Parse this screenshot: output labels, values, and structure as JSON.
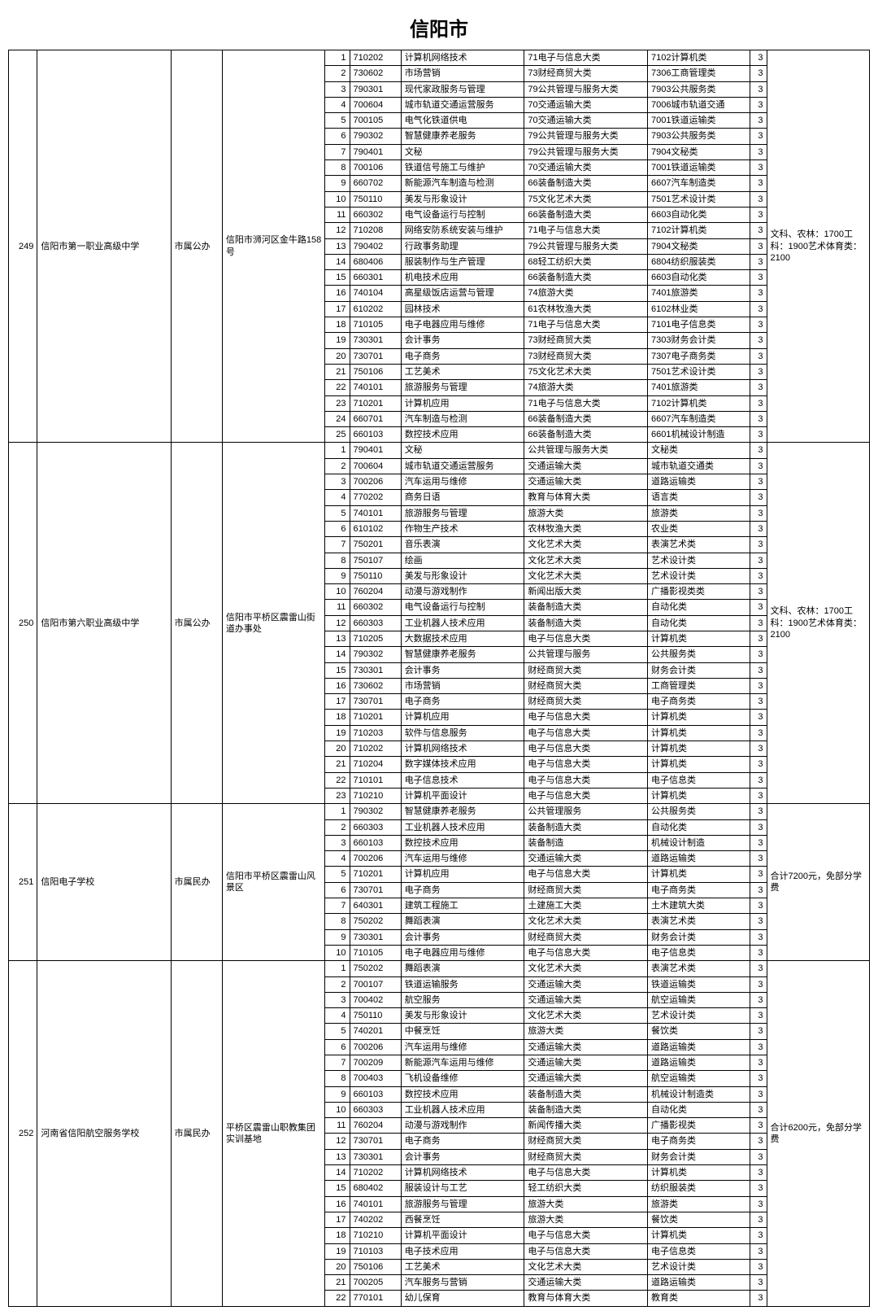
{
  "title": "信阳市",
  "schools": [
    {
      "id": "249",
      "name": "信阳市第一职业高级中学",
      "type": "市属公办",
      "address": "信阳市浉河区金牛路158号",
      "note": "文科、农林：1700工科：1900艺术体育类：2100",
      "majors": [
        {
          "seq": "1",
          "code": "710202",
          "name": "计算机网络技术",
          "cat1": "71电子与信息大类",
          "cat2": "7102计算机类",
          "yr": "3"
        },
        {
          "seq": "2",
          "code": "730602",
          "name": "市场营销",
          "cat1": "73财经商贸大类",
          "cat2": "7306工商管理类",
          "yr": "3"
        },
        {
          "seq": "3",
          "code": "790301",
          "name": "现代家政服务与管理",
          "cat1": "79公共管理与服务大类",
          "cat2": "7903公共服务类",
          "yr": "3"
        },
        {
          "seq": "4",
          "code": "700604",
          "name": "城市轨道交通运营服务",
          "cat1": "70交通运输大类",
          "cat2": "7006城市轨道交通",
          "yr": "3"
        },
        {
          "seq": "5",
          "code": "700105",
          "name": "电气化铁道供电",
          "cat1": "70交通运输大类",
          "cat2": "7001铁道运输类",
          "yr": "3"
        },
        {
          "seq": "6",
          "code": "790302",
          "name": "智慧健康养老服务",
          "cat1": "79公共管理与服务大类",
          "cat2": "7903公共服务类",
          "yr": "3"
        },
        {
          "seq": "7",
          "code": "790401",
          "name": "文秘",
          "cat1": "79公共管理与服务大类",
          "cat2": "7904文秘类",
          "yr": "3"
        },
        {
          "seq": "8",
          "code": "700106",
          "name": "铁道信号施工与维护",
          "cat1": "70交通运输大类",
          "cat2": "7001铁道运输类",
          "yr": "3"
        },
        {
          "seq": "9",
          "code": "660702",
          "name": "新能源汽车制造与检测",
          "cat1": "66装备制造大类",
          "cat2": "6607汽车制造类",
          "yr": "3"
        },
        {
          "seq": "10",
          "code": "750110",
          "name": "美发与形象设计",
          "cat1": "75文化艺术大类",
          "cat2": "7501艺术设计类",
          "yr": "3"
        },
        {
          "seq": "11",
          "code": "660302",
          "name": "电气设备运行与控制",
          "cat1": "66装备制造大类",
          "cat2": "6603自动化类",
          "yr": "3"
        },
        {
          "seq": "12",
          "code": "710208",
          "name": "网络安防系统安装与维护",
          "cat1": "71电子与信息大类",
          "cat2": "7102计算机类",
          "yr": "3"
        },
        {
          "seq": "13",
          "code": "790402",
          "name": "行政事务助理",
          "cat1": "79公共管理与服务大类",
          "cat2": "7904文秘类",
          "yr": "3"
        },
        {
          "seq": "14",
          "code": "680406",
          "name": "服装制作与生产管理",
          "cat1": "68轻工纺织大类",
          "cat2": "6804纺织服装类",
          "yr": "3"
        },
        {
          "seq": "15",
          "code": "660301",
          "name": "机电技术应用",
          "cat1": "66装备制造大类",
          "cat2": "6603自动化类",
          "yr": "3"
        },
        {
          "seq": "16",
          "code": "740104",
          "name": "高星级饭店运营与管理",
          "cat1": "74旅游大类",
          "cat2": "7401旅游类",
          "yr": "3"
        },
        {
          "seq": "17",
          "code": "610202",
          "name": "园林技术",
          "cat1": "61农林牧渔大类",
          "cat2": "6102林业类",
          "yr": "3"
        },
        {
          "seq": "18",
          "code": "710105",
          "name": "电子电器应用与维修",
          "cat1": "71电子与信息大类",
          "cat2": "7101电子信息类",
          "yr": "3"
        },
        {
          "seq": "19",
          "code": "730301",
          "name": "会计事务",
          "cat1": "73财经商贸大类",
          "cat2": "7303财务会计类",
          "yr": "3"
        },
        {
          "seq": "20",
          "code": "730701",
          "name": "电子商务",
          "cat1": "73财经商贸大类",
          "cat2": "7307电子商务类",
          "yr": "3"
        },
        {
          "seq": "21",
          "code": "750106",
          "name": "工艺美术",
          "cat1": "75文化艺术大类",
          "cat2": "7501艺术设计类",
          "yr": "3"
        },
        {
          "seq": "22",
          "code": "740101",
          "name": "旅游服务与管理",
          "cat1": "74旅游大类",
          "cat2": "7401旅游类",
          "yr": "3"
        },
        {
          "seq": "23",
          "code": "710201",
          "name": "计算机应用",
          "cat1": "71电子与信息大类",
          "cat2": "7102计算机类",
          "yr": "3"
        },
        {
          "seq": "24",
          "code": "660701",
          "name": "汽车制造与检测",
          "cat1": "66装备制造大类",
          "cat2": "6607汽车制造类",
          "yr": "3"
        },
        {
          "seq": "25",
          "code": "660103",
          "name": "数控技术应用",
          "cat1": "66装备制造大类",
          "cat2": "6601机械设计制造",
          "yr": "3"
        }
      ]
    },
    {
      "id": "250",
      "name": "信阳市第六职业高级中学",
      "type": "市属公办",
      "address": "信阳市平桥区震雷山街道办事处",
      "note": "文科、农林：1700工科：1900艺术体育类：2100",
      "majors": [
        {
          "seq": "1",
          "code": "790401",
          "name": "文秘",
          "cat1": "公共管理与服务大类",
          "cat2": "文秘类",
          "yr": "3"
        },
        {
          "seq": "2",
          "code": "700604",
          "name": "城市轨道交通运营服务",
          "cat1": "交通运输大类",
          "cat2": "城市轨道交通类",
          "yr": "3"
        },
        {
          "seq": "3",
          "code": "700206",
          "name": "汽车运用与维修",
          "cat1": "交通运输大类",
          "cat2": "道路运输类",
          "yr": "3"
        },
        {
          "seq": "4",
          "code": "770202",
          "name": "商务日语",
          "cat1": "教育与体育大类",
          "cat2": "语言类",
          "yr": "3"
        },
        {
          "seq": "5",
          "code": "740101",
          "name": "旅游服务与管理",
          "cat1": "旅游大类",
          "cat2": "旅游类",
          "yr": "3"
        },
        {
          "seq": "6",
          "code": "610102",
          "name": "作物生产技术",
          "cat1": "农林牧渔大类",
          "cat2": "农业类",
          "yr": "3"
        },
        {
          "seq": "7",
          "code": "750201",
          "name": "音乐表演",
          "cat1": "文化艺术大类",
          "cat2": "表演艺术类",
          "yr": "3"
        },
        {
          "seq": "8",
          "code": "750107",
          "name": "绘画",
          "cat1": "文化艺术大类",
          "cat2": "艺术设计类",
          "yr": "3"
        },
        {
          "seq": "9",
          "code": "750110",
          "name": "美发与形象设计",
          "cat1": "文化艺术大类",
          "cat2": "艺术设计类",
          "yr": "3"
        },
        {
          "seq": "10",
          "code": "760204",
          "name": "动漫与游戏制作",
          "cat1": "新闻出版大类",
          "cat2": "广播影视类类",
          "yr": "3"
        },
        {
          "seq": "11",
          "code": "660302",
          "name": "电气设备运行与控制",
          "cat1": "装备制造大类",
          "cat2": "自动化类",
          "yr": "3"
        },
        {
          "seq": "12",
          "code": "660303",
          "name": "工业机器人技术应用",
          "cat1": "装备制造大类",
          "cat2": "自动化类",
          "yr": "3"
        },
        {
          "seq": "13",
          "code": "710205",
          "name": "大数据技术应用",
          "cat1": "电子与信息大类",
          "cat2": "计算机类",
          "yr": "3"
        },
        {
          "seq": "14",
          "code": "790302",
          "name": "智慧健康养老服务",
          "cat1": "公共管理与服务",
          "cat2": "公共服务类",
          "yr": "3"
        },
        {
          "seq": "15",
          "code": "730301",
          "name": "会计事务",
          "cat1": "财经商贸大类",
          "cat2": "财务会计类",
          "yr": "3"
        },
        {
          "seq": "16",
          "code": "730602",
          "name": "市场营销",
          "cat1": "财经商贸大类",
          "cat2": "工商管理类",
          "yr": "3"
        },
        {
          "seq": "17",
          "code": "730701",
          "name": "电子商务",
          "cat1": "财经商贸大类",
          "cat2": "电子商务类",
          "yr": "3"
        },
        {
          "seq": "18",
          "code": "710201",
          "name": "计算机应用",
          "cat1": "电子与信息大类",
          "cat2": "计算机类",
          "yr": "3"
        },
        {
          "seq": "19",
          "code": "710203",
          "name": "软件与信息服务",
          "cat1": "电子与信息大类",
          "cat2": "计算机类",
          "yr": "3"
        },
        {
          "seq": "20",
          "code": "710202",
          "name": "计算机网络技术",
          "cat1": "电子与信息大类",
          "cat2": "计算机类",
          "yr": "3"
        },
        {
          "seq": "21",
          "code": "710204",
          "name": "数字媒体技术应用",
          "cat1": "电子与信息大类",
          "cat2": "计算机类",
          "yr": "3"
        },
        {
          "seq": "22",
          "code": "710101",
          "name": "电子信息技术",
          "cat1": "电子与信息大类",
          "cat2": "电子信息类",
          "yr": "3"
        },
        {
          "seq": "23",
          "code": "710210",
          "name": "计算机平面设计",
          "cat1": "电子与信息大类",
          "cat2": "计算机类",
          "yr": "3"
        }
      ]
    },
    {
      "id": "251",
      "name": "信阳电子学校",
      "type": "市属民办",
      "address": "信阳市平桥区震雷山风景区",
      "note": "合计7200元，免部分学费",
      "majors": [
        {
          "seq": "1",
          "code": "790302",
          "name": "智慧健康养老服务",
          "cat1": "公共管理服务",
          "cat2": "公共服务类",
          "yr": "3"
        },
        {
          "seq": "2",
          "code": "660303",
          "name": "工业机器人技术应用",
          "cat1": "装备制造大类",
          "cat2": "自动化类",
          "yr": "3"
        },
        {
          "seq": "3",
          "code": "660103",
          "name": "数控技术应用",
          "cat1": "装备制造",
          "cat2": "机械设计制造",
          "yr": "3"
        },
        {
          "seq": "4",
          "code": "700206",
          "name": "汽车运用与维修",
          "cat1": "交通运输大类",
          "cat2": "道路运输类",
          "yr": "3"
        },
        {
          "seq": "5",
          "code": "710201",
          "name": "计算机应用",
          "cat1": "电子与信息大类",
          "cat2": "计算机类",
          "yr": "3"
        },
        {
          "seq": "6",
          "code": "730701",
          "name": "电子商务",
          "cat1": "财经商贸大类",
          "cat2": "电子商务类",
          "yr": "3"
        },
        {
          "seq": "7",
          "code": "640301",
          "name": "建筑工程施工",
          "cat1": "土建施工大类",
          "cat2": "土木建筑大类",
          "yr": "3"
        },
        {
          "seq": "8",
          "code": "750202",
          "name": "舞蹈表演",
          "cat1": "文化艺术大类",
          "cat2": "表演艺术类",
          "yr": "3"
        },
        {
          "seq": "9",
          "code": "730301",
          "name": "会计事务",
          "cat1": "财经商贸大类",
          "cat2": "财务会计类",
          "yr": "3"
        },
        {
          "seq": "10",
          "code": "710105",
          "name": "电子电器应用与维修",
          "cat1": "电子与信息大类",
          "cat2": "电子信息类",
          "yr": "3"
        }
      ]
    },
    {
      "id": "252",
      "name": "河南省信阳航空服务学校",
      "type": "市属民办",
      "address": "平桥区震雷山职教集团实训基地",
      "note": "合计6200元，免部分学费",
      "majors": [
        {
          "seq": "1",
          "code": "750202",
          "name": "舞蹈表演",
          "cat1": "文化艺术大类",
          "cat2": "表演艺术类",
          "yr": "3"
        },
        {
          "seq": "2",
          "code": "700107",
          "name": "铁道运输服务",
          "cat1": "交通运输大类",
          "cat2": "铁道运输类",
          "yr": "3"
        },
        {
          "seq": "3",
          "code": "700402",
          "name": "航空服务",
          "cat1": "交通运输大类",
          "cat2": "航空运输类",
          "yr": "3"
        },
        {
          "seq": "4",
          "code": "750110",
          "name": "美发与形象设计",
          "cat1": "文化艺术大类",
          "cat2": "艺术设计类",
          "yr": "3"
        },
        {
          "seq": "5",
          "code": "740201",
          "name": "中餐烹饪",
          "cat1": "旅游大类",
          "cat2": "餐饮类",
          "yr": "3"
        },
        {
          "seq": "6",
          "code": "700206",
          "name": "汽车运用与维修",
          "cat1": "交通运输大类",
          "cat2": "道路运输类",
          "yr": "3"
        },
        {
          "seq": "7",
          "code": "700209",
          "name": "新能源汽车运用与维修",
          "cat1": "交通运输大类",
          "cat2": "道路运输类",
          "yr": "3"
        },
        {
          "seq": "8",
          "code": "700403",
          "name": "飞机设备维修",
          "cat1": "交通运输大类",
          "cat2": "航空运输类",
          "yr": "3"
        },
        {
          "seq": "9",
          "code": "660103",
          "name": "数控技术应用",
          "cat1": "装备制造大类",
          "cat2": "机械设计制造类",
          "yr": "3"
        },
        {
          "seq": "10",
          "code": "660303",
          "name": "工业机器人技术应用",
          "cat1": "装备制造大类",
          "cat2": "自动化类",
          "yr": "3"
        },
        {
          "seq": "11",
          "code": "760204",
          "name": "动漫与游戏制作",
          "cat1": "新闻传播大类",
          "cat2": "广播影视类",
          "yr": "3"
        },
        {
          "seq": "12",
          "code": "730701",
          "name": "电子商务",
          "cat1": "财经商贸大类",
          "cat2": "电子商务类",
          "yr": "3"
        },
        {
          "seq": "13",
          "code": "730301",
          "name": "会计事务",
          "cat1": "财经商贸大类",
          "cat2": "财务会计类",
          "yr": "3"
        },
        {
          "seq": "14",
          "code": "710202",
          "name": "计算机网络技术",
          "cat1": "电子与信息大类",
          "cat2": "计算机类",
          "yr": "3"
        },
        {
          "seq": "15",
          "code": "680402",
          "name": "服装设计与工艺",
          "cat1": "轻工纺织大类",
          "cat2": "纺织服装类",
          "yr": "3"
        },
        {
          "seq": "16",
          "code": "740101",
          "name": "旅游服务与管理",
          "cat1": "旅游大类",
          "cat2": "旅游类",
          "yr": "3"
        },
        {
          "seq": "17",
          "code": "740202",
          "name": "西餐烹饪",
          "cat1": "旅游大类",
          "cat2": "餐饮类",
          "yr": "3"
        },
        {
          "seq": "18",
          "code": "710210",
          "name": "计算机平面设计",
          "cat1": "电子与信息大类",
          "cat2": "计算机类",
          "yr": "3"
        },
        {
          "seq": "19",
          "code": "710103",
          "name": "电子技术应用",
          "cat1": "电子与信息大类",
          "cat2": "电子信息类",
          "yr": "3"
        },
        {
          "seq": "20",
          "code": "750106",
          "name": "工艺美术",
          "cat1": "文化艺术大类",
          "cat2": "艺术设计类",
          "yr": "3"
        },
        {
          "seq": "21",
          "code": "700205",
          "name": "汽车服务与营销",
          "cat1": "交通运输大类",
          "cat2": "道路运输类",
          "yr": "3"
        },
        {
          "seq": "22",
          "code": "770101",
          "name": "幼儿保育",
          "cat1": "教育与体育大类",
          "cat2": "教育类",
          "yr": "3"
        }
      ]
    }
  ]
}
